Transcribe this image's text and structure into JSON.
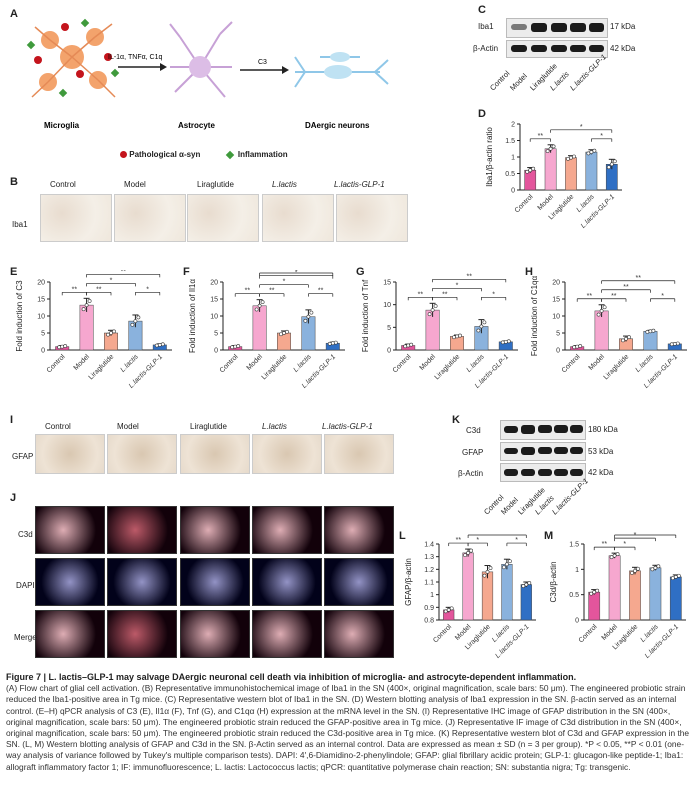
{
  "logo_text": "",
  "panels": {
    "A": {
      "label": "A",
      "stimuli": "IL-1α, TNFα, C1q",
      "c3": "C3",
      "cells": [
        "Microglia",
        "Astrocyte",
        "DAergic neurons"
      ],
      "legend": [
        "Pathological α-syn",
        "Inflammation"
      ]
    },
    "B": {
      "label": "B",
      "row_label": "Iba1"
    },
    "C": {
      "label": "C",
      "proteins": [
        "Iba1",
        "β-Actin"
      ],
      "sizes": [
        "17 kDa",
        "42 kDa"
      ]
    },
    "D": {
      "label": "D"
    },
    "E": {
      "label": "E"
    },
    "F": {
      "label": "F"
    },
    "G": {
      "label": "G"
    },
    "H": {
      "label": "H"
    },
    "I": {
      "label": "I",
      "row_label": "GFAP"
    },
    "J": {
      "label": "J",
      "row_labels": [
        "C3d",
        "DAPI",
        "Merge"
      ]
    },
    "K": {
      "label": "K",
      "proteins": [
        "C3d",
        "GFAP",
        "β-Actin"
      ],
      "sizes": [
        "180 kDa",
        "53 kDa",
        "42 kDa"
      ]
    },
    "L": {
      "label": "L"
    },
    "M": {
      "label": "M"
    }
  },
  "groups": [
    "Control",
    "Model",
    "Liraglutide",
    "L.lactis",
    "L.lactis-GLP-1"
  ],
  "colors": {
    "Control": "#e3559c",
    "Model": "#f6a7cf",
    "Liraglutide": "#f5a88f",
    "L.lactis": "#8ab2dd",
    "L.lactis-GLP-1": "#2f6fc4"
  },
  "chart_data": [
    {
      "panel": "D",
      "type": "bar",
      "ylabel": "Iba1/β-actin ratio",
      "ylim": [
        0,
        2.0
      ],
      "yticks": [
        0,
        0.5,
        1.0,
        1.5,
        2.0
      ],
      "categories": [
        "Control",
        "Model",
        "Liraglutide",
        "L.lactis",
        "L.lactis-GLP-1"
      ],
      "values": [
        0.6,
        1.25,
        0.98,
        1.15,
        0.78
      ],
      "errors": [
        0.08,
        0.12,
        0.06,
        0.07,
        0.15
      ],
      "sig": [
        {
          "from": 0,
          "to": 1,
          "label": "**",
          "level": 0
        },
        {
          "from": 1,
          "to": 4,
          "label": "*",
          "level": 1
        },
        {
          "from": 3,
          "to": 4,
          "label": "*",
          "level": 0
        }
      ]
    },
    {
      "panel": "E",
      "type": "bar",
      "ylabel": "Fold induction of C3",
      "ylim": [
        0,
        20
      ],
      "yticks": [
        0,
        5,
        10,
        15,
        20
      ],
      "categories": [
        "Control",
        "Model",
        "Liraglutide",
        "L.lactis",
        "L.lactis-GLP-1"
      ],
      "values": [
        1.0,
        13.2,
        5.0,
        8.5,
        1.5
      ],
      "errors": [
        0.3,
        2.0,
        0.8,
        1.8,
        0.3
      ],
      "sig": [
        {
          "from": 0,
          "to": 1,
          "label": "**",
          "level": 0
        },
        {
          "from": 1,
          "to": 2,
          "label": "**",
          "level": 0
        },
        {
          "from": 1,
          "to": 3,
          "label": "*",
          "level": 1
        },
        {
          "from": 1,
          "to": 4,
          "label": "**",
          "level": 2
        },
        {
          "from": 3,
          "to": 4,
          "label": "*",
          "level": 0
        }
      ]
    },
    {
      "panel": "F",
      "type": "bar",
      "ylabel": "Fold induction of Il1α",
      "ylim": [
        0,
        20
      ],
      "yticks": [
        0,
        5,
        10,
        15,
        20
      ],
      "categories": [
        "Control",
        "Model",
        "Liraglutide",
        "L.lactis",
        "L.lactis-GLP-1"
      ],
      "values": [
        1.0,
        13.0,
        5.0,
        9.8,
        2.0
      ],
      "errors": [
        0.3,
        1.8,
        0.6,
        2.0,
        0.3
      ],
      "sig": [
        {
          "from": 0,
          "to": 1,
          "label": "**",
          "level": 0
        },
        {
          "from": 1,
          "to": 2,
          "label": "**",
          "level": 0
        },
        {
          "from": 1,
          "to": 3,
          "label": "*",
          "level": 1
        },
        {
          "from": 1,
          "to": 4,
          "label": "*",
          "level": 2
        },
        {
          "from": 1,
          "to": 4,
          "label": "**",
          "level": 3
        },
        {
          "from": 3,
          "to": 4,
          "label": "**",
          "level": 0
        }
      ]
    },
    {
      "panel": "G",
      "type": "bar",
      "ylabel": "Fold induction of Tnf",
      "ylim": [
        0,
        15
      ],
      "yticks": [
        0,
        5,
        10,
        15
      ],
      "categories": [
        "Control",
        "Model",
        "Liraglutide",
        "L.lactis",
        "L.lactis-GLP-1"
      ],
      "values": [
        1.0,
        8.8,
        3.0,
        5.2,
        1.8
      ],
      "errors": [
        0.3,
        1.5,
        0.3,
        1.5,
        0.2
      ],
      "sig": [
        {
          "from": 0,
          "to": 1,
          "label": "**",
          "level": 0
        },
        {
          "from": 1,
          "to": 2,
          "label": "**",
          "level": 0
        },
        {
          "from": 1,
          "to": 3,
          "label": "*",
          "level": 1
        },
        {
          "from": 1,
          "to": 4,
          "label": "**",
          "level": 2
        },
        {
          "from": 3,
          "to": 4,
          "label": "*",
          "level": 0
        }
      ]
    },
    {
      "panel": "H",
      "type": "bar",
      "ylabel": "Fold induction of C1qα",
      "ylim": [
        0,
        20
      ],
      "yticks": [
        0,
        5,
        10,
        15,
        20
      ],
      "categories": [
        "Control",
        "Model",
        "Liraglutide",
        "L.lactis",
        "L.lactis-GLP-1"
      ],
      "values": [
        1.0,
        11.5,
        3.3,
        5.5,
        1.8
      ],
      "errors": [
        0.3,
        1.8,
        0.8,
        0.3,
        0.2
      ],
      "sig": [
        {
          "from": 0,
          "to": 1,
          "label": "**",
          "level": 0
        },
        {
          "from": 1,
          "to": 2,
          "label": "**",
          "level": 0
        },
        {
          "from": 1,
          "to": 3,
          "label": "**",
          "level": 1
        },
        {
          "from": 1,
          "to": 4,
          "label": "**",
          "level": 2
        },
        {
          "from": 3,
          "to": 4,
          "label": "*",
          "level": 0
        }
      ]
    },
    {
      "panel": "L",
      "type": "bar",
      "ylabel": "GFAP/β-actin",
      "ylim": [
        0.8,
        1.4
      ],
      "yticks": [
        0.8,
        0.9,
        1.0,
        1.1,
        1.2,
        1.3,
        1.4
      ],
      "categories": [
        "Control",
        "Model",
        "Liraglutide",
        "L.lactis",
        "L.lactis-GLP-1"
      ],
      "values": [
        0.88,
        1.33,
        1.18,
        1.24,
        1.08
      ],
      "errors": [
        0.02,
        0.03,
        0.05,
        0.04,
        0.02
      ],
      "sig": [
        {
          "from": 0,
          "to": 1,
          "label": "**",
          "level": 0
        },
        {
          "from": 1,
          "to": 2,
          "label": "*",
          "level": 0
        },
        {
          "from": 1,
          "to": 4,
          "label": "**",
          "level": 1
        },
        {
          "from": 3,
          "to": 4,
          "label": "*",
          "level": 0
        }
      ]
    },
    {
      "panel": "M",
      "type": "bar",
      "ylabel": "C3d/β-actin",
      "ylim": [
        0,
        1.5
      ],
      "yticks": [
        0,
        0.5,
        1.0,
        1.5
      ],
      "categories": [
        "Control",
        "Model",
        "Liraglutide",
        "L.lactis",
        "L.lactis-GLP-1"
      ],
      "values": [
        0.55,
        1.27,
        0.97,
        1.03,
        0.85
      ],
      "errors": [
        0.05,
        0.05,
        0.07,
        0.05,
        0.04
      ],
      "sig": [
        {
          "from": 0,
          "to": 1,
          "label": "**",
          "level": 0
        },
        {
          "from": 1,
          "to": 2,
          "label": "*",
          "level": 0
        },
        {
          "from": 1,
          "to": 3,
          "label": "*",
          "level": 1
        },
        {
          "from": 1,
          "to": 4,
          "label": "**",
          "level": 2
        }
      ]
    }
  ],
  "caption": {
    "title": "Figure 7  |  L. lactis–GLP-1 may salvage DAergic neuronal cell death via inhibition of microglia- and astrocyte-dependent inflammation.",
    "body": "(A) Flow chart of glial cell activation. (B) Representative immunohistochemical image of Iba1 in the SN (400×, original magnification, scale bars: 50 μm). The engineered probiotic strain reduced the Iba1-positive area in Tg mice. (C) Representative western blot of Iba1 in the SN. (D) Western blotting analysis of Iba1 expression in the SN. β-actin served as an internal control. (E–H) qPCR analysis of C3 (E), Il1α (F), Tnf (G), and C1qα (H) expression at the mRNA level in the SN. (I) Representative IHC image of GFAP distribution in the SN (400×, original magnification, scale bars: 50 μm). The engineered probiotic strain reduced the GFAP-positive area in Tg mice. (J) Representative IF image of C3d distribution in the SN (400×, original magnification, scale bars: 50 μm). The engineered probiotic strain reduced the C3d-positive area in Tg mice. (K) Representative western blot of C3d and GFAP expression in the SN. (L, M) Western blotting analysis of GFAP and C3d in the SN. β-Actin served as an internal control. Data are expressed as mean ± SD (n = 3 per group). *P < 0.05, **P < 0.01 (one-way analysis of variance followed by Tukey's multiple comparison tests). DAPI: 4′,6-Diamidino-2-phenylindole; GFAP: glial fibrillary acidic protein; GLP-1: glucagon-like peptide-1; Iba1: allograft inflammatory factor 1; IF: immunofluorescence; L. lactis: Lactococcus lactis; qPCR: quantitative polymerase chain reaction; SN: substantia nigra; Tg: transgenic."
  }
}
